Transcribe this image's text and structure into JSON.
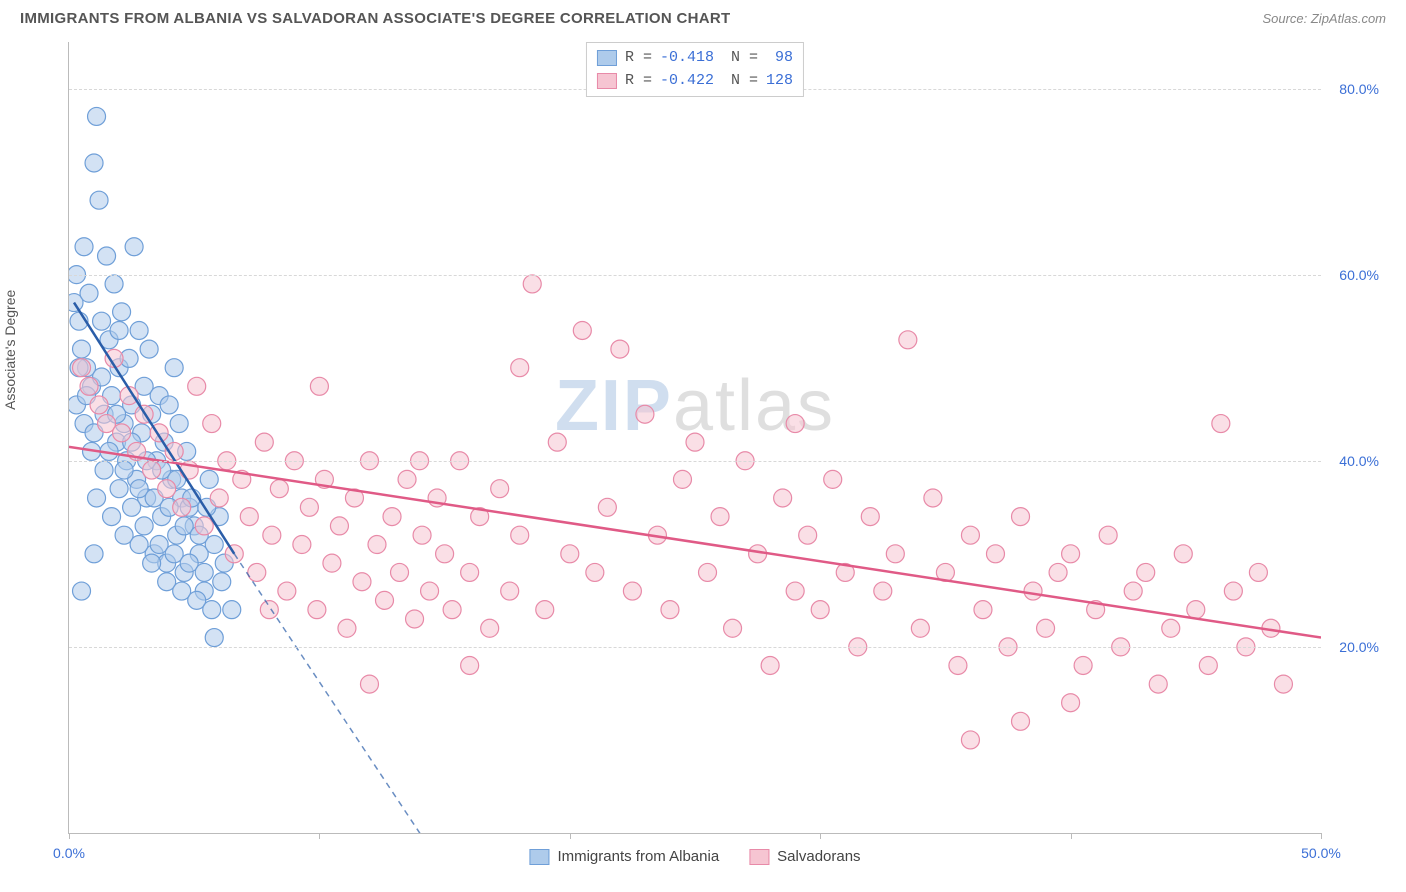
{
  "title": "IMMIGRANTS FROM ALBANIA VS SALVADORAN ASSOCIATE'S DEGREE CORRELATION CHART",
  "source": "Source: ZipAtlas.com",
  "y_axis_label": "Associate's Degree",
  "watermark_a": "ZIP",
  "watermark_b": "atlas",
  "chart": {
    "type": "scatter",
    "xlim": [
      0,
      50
    ],
    "ylim": [
      0,
      85
    ],
    "x_ticks": [
      0,
      10,
      20,
      30,
      40,
      50
    ],
    "x_tick_labels": {
      "0": "0.0%",
      "50": "50.0%"
    },
    "y_ticks": [
      20,
      40,
      60,
      80
    ],
    "y_tick_labels": {
      "20": "20.0%",
      "40": "40.0%",
      "60": "60.0%",
      "80": "80.0%"
    },
    "grid_color": "#d8d8d8",
    "axis_color": "#bbbbbb",
    "label_color": "#3b6fd6",
    "background_color": "#ffffff",
    "marker_radius": 9,
    "marker_opacity": 0.55,
    "series": [
      {
        "name": "Immigrants from Albania",
        "fill": "#aecbeb",
        "stroke": "#6f9fd8",
        "line_color": "#2a5da8",
        "R": "-0.418",
        "N": "98",
        "trend": {
          "x1": 0.2,
          "y1": 57,
          "x2": 6.6,
          "y2": 30,
          "dash_x2": 14.5,
          "dash_y2": -2
        },
        "points": [
          [
            0.2,
            57
          ],
          [
            0.3,
            60
          ],
          [
            0.4,
            55
          ],
          [
            0.5,
            52
          ],
          [
            0.6,
            63
          ],
          [
            0.7,
            50
          ],
          [
            0.8,
            58
          ],
          [
            0.9,
            48
          ],
          [
            1.0,
            72
          ],
          [
            1.1,
            77
          ],
          [
            1.2,
            68
          ],
          [
            1.3,
            55
          ],
          [
            1.4,
            45
          ],
          [
            1.5,
            62
          ],
          [
            1.6,
            53
          ],
          [
            1.7,
            47
          ],
          [
            1.8,
            59
          ],
          [
            1.9,
            42
          ],
          [
            2.0,
            50
          ],
          [
            2.1,
            56
          ],
          [
            2.2,
            44
          ],
          [
            2.3,
            40
          ],
          [
            2.4,
            51
          ],
          [
            2.5,
            46
          ],
          [
            2.6,
            63
          ],
          [
            2.7,
            38
          ],
          [
            2.8,
            54
          ],
          [
            2.9,
            43
          ],
          [
            3.0,
            48
          ],
          [
            3.1,
            36
          ],
          [
            3.2,
            52
          ],
          [
            3.3,
            45
          ],
          [
            3.4,
            30
          ],
          [
            3.5,
            40
          ],
          [
            3.6,
            47
          ],
          [
            3.7,
            34
          ],
          [
            3.8,
            42
          ],
          [
            3.9,
            29
          ],
          [
            4.0,
            46
          ],
          [
            4.1,
            38
          ],
          [
            4.2,
            50
          ],
          [
            4.3,
            32
          ],
          [
            4.4,
            44
          ],
          [
            4.5,
            36
          ],
          [
            4.6,
            28
          ],
          [
            4.7,
            41
          ],
          [
            4.8,
            35
          ],
          [
            5.0,
            33
          ],
          [
            5.2,
            30
          ],
          [
            5.4,
            26
          ],
          [
            5.6,
            38
          ],
          [
            5.8,
            21
          ],
          [
            6.0,
            34
          ],
          [
            6.2,
            29
          ],
          [
            6.5,
            24
          ],
          [
            0.3,
            46
          ],
          [
            0.6,
            44
          ],
          [
            0.9,
            41
          ],
          [
            1.1,
            36
          ],
          [
            1.4,
            39
          ],
          [
            1.7,
            34
          ],
          [
            2.0,
            37
          ],
          [
            2.2,
            32
          ],
          [
            2.5,
            35
          ],
          [
            2.8,
            31
          ],
          [
            3.0,
            33
          ],
          [
            3.3,
            29
          ],
          [
            3.6,
            31
          ],
          [
            3.9,
            27
          ],
          [
            4.2,
            30
          ],
          [
            4.5,
            26
          ],
          [
            4.8,
            29
          ],
          [
            5.1,
            25
          ],
          [
            5.4,
            28
          ],
          [
            5.7,
            24
          ],
          [
            0.4,
            50
          ],
          [
            0.7,
            47
          ],
          [
            1.0,
            43
          ],
          [
            1.3,
            49
          ],
          [
            1.6,
            41
          ],
          [
            1.9,
            45
          ],
          [
            2.2,
            39
          ],
          [
            2.5,
            42
          ],
          [
            2.8,
            37
          ],
          [
            3.1,
            40
          ],
          [
            3.4,
            36
          ],
          [
            3.7,
            39
          ],
          [
            4.0,
            35
          ],
          [
            4.3,
            38
          ],
          [
            4.6,
            33
          ],
          [
            4.9,
            36
          ],
          [
            5.2,
            32
          ],
          [
            5.5,
            35
          ],
          [
            5.8,
            31
          ],
          [
            6.1,
            27
          ],
          [
            1.0,
            30
          ],
          [
            0.5,
            26
          ],
          [
            2.0,
            54
          ]
        ]
      },
      {
        "name": "Salvadorans",
        "fill": "#f6c5d2",
        "stroke": "#e88aa8",
        "line_color": "#e05a86",
        "R": "-0.422",
        "N": "128",
        "trend": {
          "x1": 0,
          "y1": 41.5,
          "x2": 50,
          "y2": 21
        },
        "points": [
          [
            0.5,
            50
          ],
          [
            0.8,
            48
          ],
          [
            1.2,
            46
          ],
          [
            1.5,
            44
          ],
          [
            1.8,
            51
          ],
          [
            2.1,
            43
          ],
          [
            2.4,
            47
          ],
          [
            2.7,
            41
          ],
          [
            3.0,
            45
          ],
          [
            3.3,
            39
          ],
          [
            3.6,
            43
          ],
          [
            3.9,
            37
          ],
          [
            4.2,
            41
          ],
          [
            4.5,
            35
          ],
          [
            4.8,
            39
          ],
          [
            5.1,
            48
          ],
          [
            5.4,
            33
          ],
          [
            5.7,
            44
          ],
          [
            6.0,
            36
          ],
          [
            6.3,
            40
          ],
          [
            6.6,
            30
          ],
          [
            6.9,
            38
          ],
          [
            7.2,
            34
          ],
          [
            7.5,
            28
          ],
          [
            7.8,
            42
          ],
          [
            8.1,
            32
          ],
          [
            8.4,
            37
          ],
          [
            8.7,
            26
          ],
          [
            9.0,
            40
          ],
          [
            9.3,
            31
          ],
          [
            9.6,
            35
          ],
          [
            9.9,
            24
          ],
          [
            10.2,
            38
          ],
          [
            10.5,
            29
          ],
          [
            10.8,
            33
          ],
          [
            11.1,
            22
          ],
          [
            11.4,
            36
          ],
          [
            11.7,
            27
          ],
          [
            12.0,
            40
          ],
          [
            12.3,
            31
          ],
          [
            12.6,
            25
          ],
          [
            12.9,
            34
          ],
          [
            13.2,
            28
          ],
          [
            13.5,
            38
          ],
          [
            13.8,
            23
          ],
          [
            14.1,
            32
          ],
          [
            14.4,
            26
          ],
          [
            14.7,
            36
          ],
          [
            15.0,
            30
          ],
          [
            15.3,
            24
          ],
          [
            15.6,
            40
          ],
          [
            16.0,
            28
          ],
          [
            16.4,
            34
          ],
          [
            16.8,
            22
          ],
          [
            17.2,
            37
          ],
          [
            17.6,
            26
          ],
          [
            18.0,
            32
          ],
          [
            18.5,
            59
          ],
          [
            19.0,
            24
          ],
          [
            19.5,
            42
          ],
          [
            20.0,
            30
          ],
          [
            20.5,
            54
          ],
          [
            21.0,
            28
          ],
          [
            21.5,
            35
          ],
          [
            22.0,
            52
          ],
          [
            22.5,
            26
          ],
          [
            23.0,
            45
          ],
          [
            23.5,
            32
          ],
          [
            24.0,
            24
          ],
          [
            24.5,
            38
          ],
          [
            25.0,
            42
          ],
          [
            25.5,
            28
          ],
          [
            26.0,
            34
          ],
          [
            26.5,
            22
          ],
          [
            27.0,
            40
          ],
          [
            27.5,
            30
          ],
          [
            28.0,
            18
          ],
          [
            28.5,
            36
          ],
          [
            29.0,
            26
          ],
          [
            29.5,
            32
          ],
          [
            30.0,
            24
          ],
          [
            30.5,
            38
          ],
          [
            31.0,
            28
          ],
          [
            31.5,
            20
          ],
          [
            32.0,
            34
          ],
          [
            32.5,
            26
          ],
          [
            33.0,
            30
          ],
          [
            33.5,
            53
          ],
          [
            34.0,
            22
          ],
          [
            34.5,
            36
          ],
          [
            35.0,
            28
          ],
          [
            35.5,
            18
          ],
          [
            36.0,
            32
          ],
          [
            36.5,
            24
          ],
          [
            37.0,
            30
          ],
          [
            37.5,
            20
          ],
          [
            38.0,
            34
          ],
          [
            38.5,
            26
          ],
          [
            39.0,
            22
          ],
          [
            39.5,
            28
          ],
          [
            40.0,
            30
          ],
          [
            40.5,
            18
          ],
          [
            41.0,
            24
          ],
          [
            41.5,
            32
          ],
          [
            42.0,
            20
          ],
          [
            42.5,
            26
          ],
          [
            43.0,
            28
          ],
          [
            43.5,
            16
          ],
          [
            44.0,
            22
          ],
          [
            44.5,
            30
          ],
          [
            45.0,
            24
          ],
          [
            45.5,
            18
          ],
          [
            46.0,
            44
          ],
          [
            46.5,
            26
          ],
          [
            47.0,
            20
          ],
          [
            47.5,
            28
          ],
          [
            48.0,
            22
          ],
          [
            48.5,
            16
          ],
          [
            12.0,
            16
          ],
          [
            14.0,
            40
          ],
          [
            16.0,
            18
          ],
          [
            18.0,
            50
          ],
          [
            8.0,
            24
          ],
          [
            10.0,
            48
          ],
          [
            36.0,
            10
          ],
          [
            38.0,
            12
          ],
          [
            40.0,
            14
          ],
          [
            29.0,
            44
          ]
        ]
      }
    ]
  }
}
